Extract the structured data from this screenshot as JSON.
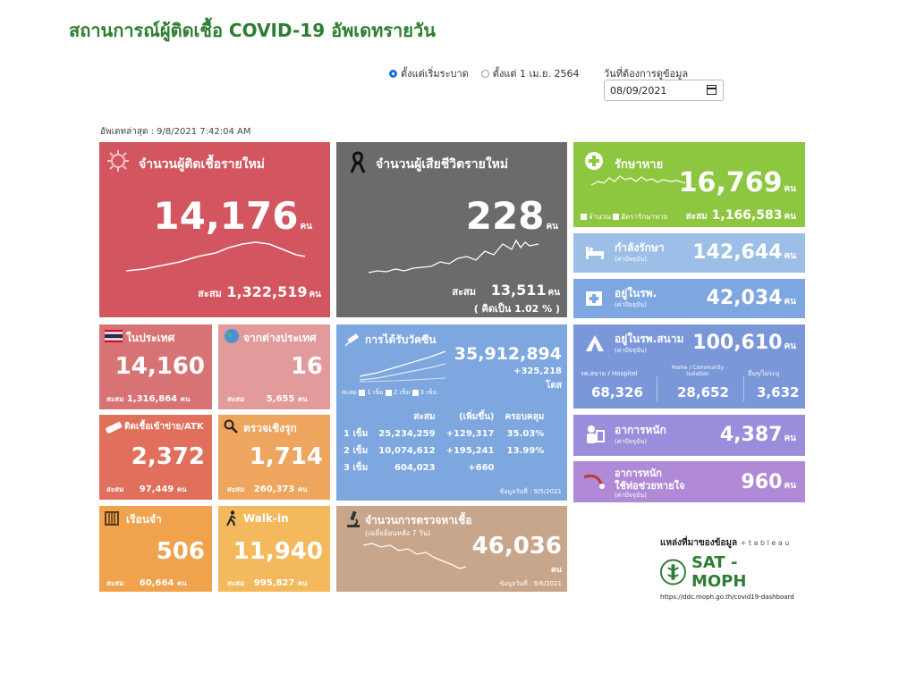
{
  "title": "สถานการณ์ผู้ติดเชื้อ COVID-19 อัพเดทรายวัน",
  "filters": {
    "option_from_start": "ตั้งแต่เริ่มระบาด",
    "option_from_april": "ตั้งแต่ 1 เม.ย. 2564",
    "date_label": "วันที่ต้องการดูข้อมูล",
    "date_value": "08/09/2021"
  },
  "updated": "อัพเดทล่าสุด : 9/8/2021 7:42:04 AM",
  "unit": "คน",
  "cumulative_label": "สะสม",
  "new_cases": {
    "label": "จำนวนผู้ติดเชื้อรายใหม่",
    "value": "14,176",
    "cumulative": "1,322,519"
  },
  "deaths": {
    "label": "จำนวนผู้เสียชีวิตรายใหม่",
    "value": "228",
    "cumulative": "13,511",
    "percent": "( คิดเป็น    1.02 % )"
  },
  "recovered": {
    "label": "รักษาหาย",
    "value": "16,769",
    "legend_count": "จำนวน",
    "legend_rate": "อัตรารักษาหาย",
    "cumulative": "1,166,583"
  },
  "in_treatment": {
    "label": "กำลังรักษา",
    "sub": "(ค่าปัจจุบัน)",
    "value": "142,644"
  },
  "in_hospital": {
    "label": "อยู่ในรพ.",
    "sub": "(ค่าปัจจุบัน)",
    "value": "42,034"
  },
  "field_hospital": {
    "label": "อยู่ในรพ.สนาม",
    "sub": "(ค่าปัจจุบัน)",
    "value": "100,610",
    "col1_label": "รพ.สนาม / Hospitel",
    "col1_value": "68,326",
    "col2_label": "Home / Community Isolation",
    "col2_value": "28,652",
    "col3_label": "อื่นๆ/ไม่ระบุ",
    "col3_value": "3,632"
  },
  "severe": {
    "label": "อาการหนัก",
    "sub": "(ค่าปัจจุบัน)",
    "value": "4,387"
  },
  "ventilator": {
    "label": "อาการหนัก",
    "label2": "ใช้ท่อช่วยหายใจ",
    "sub": "(ค่าปัจจุบัน)",
    "value": "960"
  },
  "domestic": {
    "label": "ในประเทศ",
    "value": "14,160",
    "cumulative": "1,316,864"
  },
  "abroad": {
    "label": "จากต่างประเทศ",
    "value": "16",
    "cumulative": "5,655"
  },
  "atk": {
    "label": "ติดเชื้อเข้าข่าย/ATK",
    "value": "2,372",
    "cumulative": "97,449"
  },
  "proactive": {
    "label": "ตรวจเชิงรุก",
    "value": "1,714",
    "cumulative": "260,373"
  },
  "prison": {
    "label": "เรือนจำ",
    "value": "506",
    "cumulative": "60,664"
  },
  "walkin": {
    "label": "Walk-in",
    "value": "11,940",
    "cumulative": "995,827"
  },
  "vaccine": {
    "label": "การได้รับวัคซีน",
    "total": "35,912,894",
    "increase": "+325,218",
    "dose_unit": "โดส",
    "legend": [
      "สะสม",
      "1 เข็ม",
      "2 เข็ม",
      "3 เข็ม"
    ],
    "headers": [
      "",
      "สะสม",
      "(เพิ่มขึ้น)",
      "ครอบคลุม"
    ],
    "rows": [
      [
        "1 เข็ม",
        "25,234,259",
        "+129,317",
        "35.03%"
      ],
      [
        "2 เข็ม",
        "10,074,612",
        "+195,241",
        "13.99%"
      ],
      [
        "3 เข็ม",
        "604,023",
        "+660",
        ""
      ]
    ],
    "data_date": "ข้อมูลวันที่ : 9/5/2021"
  },
  "tests": {
    "label": "จำนวนการตรวจหาเชื้อ",
    "sub": "(เฉลี่ยย้อนหลัง 7 วัน)",
    "value": "46,036",
    "unit": "คน",
    "data_date": "ข้อมูลวันที่ : 9/6/2021"
  },
  "source": {
    "label": "แหล่งที่มาของข้อมูล",
    "tableau": "+ t a b l e a u",
    "org": "SAT - MOPH",
    "url": "https://ddc.moph.go.th/covid19-dashboard"
  }
}
